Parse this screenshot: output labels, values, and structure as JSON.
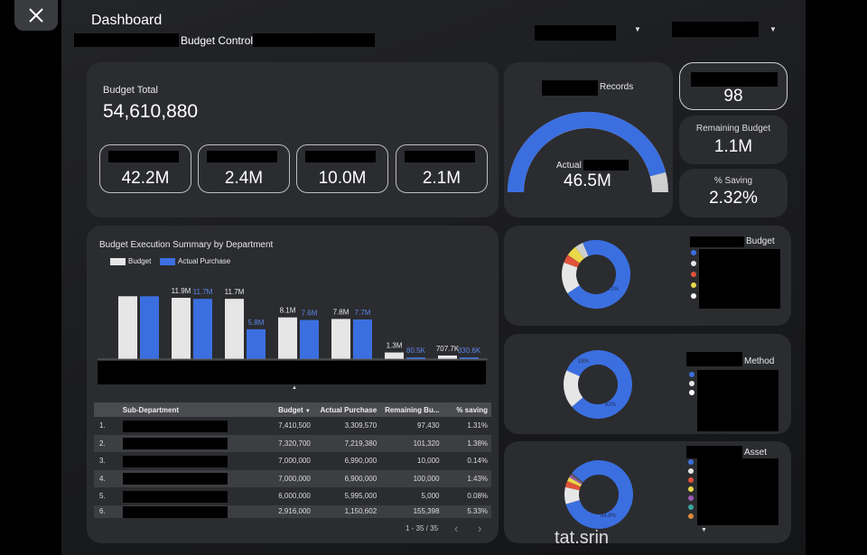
{
  "header": {
    "title": "Dashboard",
    "subtitle": "Budget Control",
    "dropdown_icon": "chevron-down-icon"
  },
  "budget_total": {
    "label": "Budget Total",
    "value": "54,610,880"
  },
  "pills": [
    "42.2M",
    "2.4M",
    "10.0M",
    "2.1M"
  ],
  "gauge": {
    "title": "Records",
    "label": "Actual",
    "value": "46.5M",
    "fill_fraction": 0.92
  },
  "kpis": {
    "records_value": "98",
    "remaining_label": "Remaining Budget",
    "remaining_value": "1.1M",
    "saving_label": "% Saving",
    "saving_value": "2.32%"
  },
  "chart_data": {
    "type": "bar",
    "title": "Budget Execution Summary by Department",
    "series": [
      {
        "name": "Budget",
        "color": "#e6e6e6",
        "values": [
          12.2,
          11.9,
          11.7,
          8.1,
          7.8,
          1.3,
          0.7077
        ],
        "labels": [
          "",
          "11.9M",
          "11.7M",
          "8.1M",
          "7.8M",
          "1.3M",
          "707.7K"
        ]
      },
      {
        "name": "Actual Purchase",
        "color": "#3b6fe0",
        "values": [
          12.2,
          11.7,
          5.8,
          7.6,
          7.7,
          0.0805,
          0.3306
        ],
        "labels": [
          "",
          "11.7M",
          "5.8M",
          "7.6M",
          "7.7M",
          "80.5K",
          "330.6K"
        ]
      }
    ],
    "ylim": [
      0,
      14
    ]
  },
  "table": {
    "headers": [
      "Sub-Department",
      "Budget",
      "Actual Purchase",
      "Remaining Bu...",
      "% saving"
    ],
    "sort_icon": "sort-desc-icon",
    "rows": [
      {
        "n": "1.",
        "budget": "7,410,500",
        "actual": "3,309,570",
        "remaining": "97,430",
        "saving": "1.31%"
      },
      {
        "n": "2.",
        "budget": "7,320,700",
        "actual": "7,219,380",
        "remaining": "101,320",
        "saving": "1.38%"
      },
      {
        "n": "3.",
        "budget": "7,000,000",
        "actual": "6,990,000",
        "remaining": "10,000",
        "saving": "0.14%"
      },
      {
        "n": "4.",
        "budget": "7,000,000",
        "actual": "6,900,000",
        "remaining": "100,000",
        "saving": "1.43%"
      },
      {
        "n": "5.",
        "budget": "6,000,000",
        "actual": "5,995,000",
        "remaining": "5,000",
        "saving": "0.08%"
      },
      {
        "n": "6.",
        "budget": "2,916,000",
        "actual": "1,150,602",
        "remaining": "155,398",
        "saving": "5.33%"
      }
    ],
    "pagination": "1 - 35 / 35"
  },
  "donuts": [
    {
      "title": "Budget",
      "label": "72%",
      "slices": [
        72,
        15,
        4,
        5,
        4
      ],
      "colors": [
        "#3b6fe0",
        "#e6e6e6",
        "#e0533a",
        "#e8d84a",
        "#cfcfcf"
      ],
      "legend": [
        "#3b6fe0",
        "#e6e6e6",
        "#e0533a",
        "#e8d84a",
        "#ffffff"
      ]
    },
    {
      "title": "Method",
      "label": "82%",
      "label2": "18%",
      "slices": [
        82,
        18
      ],
      "colors": [
        "#3b6fe0",
        "#e6e6e6"
      ],
      "legend": [
        "#3b6fe0",
        "#e6e6e6",
        "#ffffff"
      ]
    },
    {
      "title": "Asset",
      "label": "84.8%",
      "slices": [
        84.8,
        8,
        3,
        2,
        1.2,
        1
      ],
      "colors": [
        "#3b6fe0",
        "#e6e6e6",
        "#e0533a",
        "#e8d84a",
        "#9b59b6",
        "#555"
      ],
      "legend": [
        "#3b6fe0",
        "#e6e6e6",
        "#e0533a",
        "#e8d84a",
        "#9b59b6",
        "#3aa6a0",
        "#e08a3a"
      ]
    }
  ],
  "watermark": "tat.srin"
}
